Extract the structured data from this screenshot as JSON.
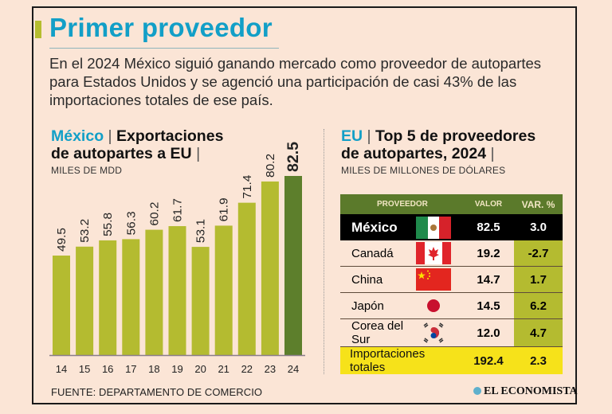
{
  "header": {
    "title": "Primer proveedor",
    "intro": "En el 2024 México siguió ganando mercado como proveedor de autopartes para Estados Unidos y se agenció una participación de casi 43% de las importaciones totales de ese país."
  },
  "left_section": {
    "title_highlight": "México",
    "title_rest_1": "Exportaciones",
    "title_rest_2": "de autopartes a EU",
    "pipe": "|",
    "subtitle": "MILES DE MDD"
  },
  "right_section": {
    "title_highlight": "EU",
    "title_rest_1": "Top 5 de proveedores",
    "title_rest_2": "de autopartes, 2024",
    "pipe": "|",
    "subtitle": "MILES DE MILLONES DE DÓLARES"
  },
  "chart_data": {
    "type": "bar",
    "title": "México | Exportaciones de autopartes a EU",
    "ylabel": "MILES DE MDD",
    "xlabel": "",
    "categories": [
      "14",
      "15",
      "16",
      "17",
      "18",
      "19",
      "20",
      "21",
      "22",
      "23",
      "24"
    ],
    "values": [
      49.5,
      53.2,
      55.8,
      56.3,
      60.2,
      61.7,
      53.1,
      61.9,
      71.4,
      80.2,
      82.5
    ],
    "value_labels": [
      "49.5",
      "53.2",
      "55.8",
      "56.3",
      "60.2",
      "61.7",
      "53.1",
      "61.9",
      "71.4",
      "80.2",
      "82.5"
    ],
    "highlight_index": 10,
    "colors": {
      "bar": "#b4bb30",
      "highlight": "#5d7f2c",
      "axis": "#8a7d8a"
    },
    "ylim": [
      0,
      90
    ],
    "grid": false,
    "legend": "none"
  },
  "table": {
    "headers": {
      "provider": "PROVEEDOR",
      "value": "VALOR",
      "var": "VAR. %"
    },
    "rows": [
      {
        "name": "México",
        "flag": "mexico-flag",
        "value": "82.5",
        "var": "3.0"
      },
      {
        "name": "Canadá",
        "flag": "canada-flag",
        "value": "19.2",
        "var": "-2.7"
      },
      {
        "name": "China",
        "flag": "china-flag",
        "value": "14.7",
        "var": "1.7"
      },
      {
        "name": "Japón",
        "flag": "japan-flag",
        "value": "14.5",
        "var": "6.2"
      },
      {
        "name": "Corea del Sur",
        "flag": "south-korea-flag",
        "value": "12.0",
        "var": "4.7"
      }
    ],
    "total": {
      "name": "Importaciones totales",
      "value": "192.4",
      "var": "2.3"
    }
  },
  "footer": {
    "source": "FUENTE: DEPARTAMENTO DE COMERCIO",
    "brand": "EL ECONOMISTA"
  },
  "colors": {
    "background": "#fbe5d6",
    "accent_blue": "#129fc7",
    "olive": "#b4bb30",
    "dark_green": "#5b7a2b",
    "yellow": "#f6e21a"
  }
}
